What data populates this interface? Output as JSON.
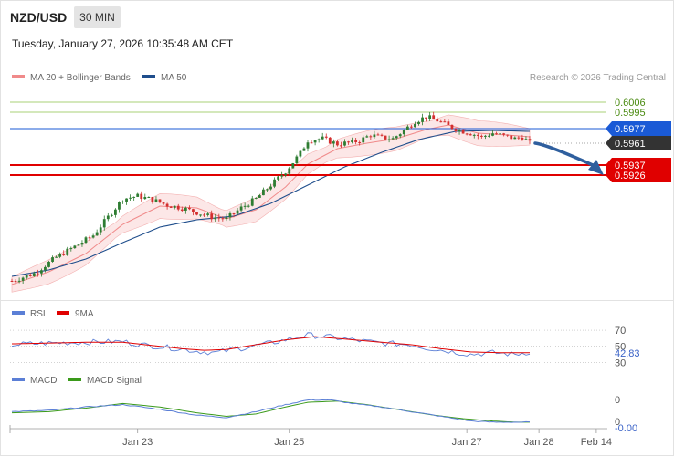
{
  "header": {
    "symbol": "NZD/USD",
    "timeframe": "30 MIN",
    "datetime": "Tuesday, January 27, 2026 10:35:48 AM CET",
    "copyright": "Research © 2026 Trading Central"
  },
  "legends": {
    "price": [
      {
        "label": "MA 20 + Bollinger Bands",
        "color": "#f08a8a"
      },
      {
        "label": "MA 50",
        "color": "#1f4e8c"
      }
    ],
    "rsi": [
      {
        "label": "RSI",
        "color": "#5b7fd6"
      },
      {
        "label": "9MA",
        "color": "#e00000"
      }
    ],
    "macd": [
      {
        "label": "MACD",
        "color": "#5b7fd6"
      },
      {
        "label": "MACD Signal",
        "color": "#3a9a1a"
      }
    ]
  },
  "colors": {
    "bull_candle": "#2e7d32",
    "bear_candle": "#d32f2f",
    "resistance": "#1a5ad6",
    "support": "#e00000",
    "green_levels": "#8bc34a",
    "last_price": "#333333",
    "arrow": "#2f5f9e"
  },
  "chart_data": [
    {
      "type": "candlestick",
      "name": "price",
      "ylim": [
        0.58,
        0.6018
      ],
      "levels": {
        "green": [
          0.6006,
          0.5995
        ],
        "resistance": 0.5977,
        "last": 0.5961,
        "support": [
          0.5937,
          0.5926
        ]
      },
      "level_labels": [
        "0.6006",
        "0.5995",
        "0.5977",
        "0.5961",
        "0.5937",
        "0.5926"
      ],
      "x_ticks": [
        "Jan 23",
        "Jan 25",
        "Jan 27",
        "Jan 28",
        "Feb 14"
      ],
      "anchors": [
        [
          0,
          0.581
        ],
        [
          6,
          0.5818
        ],
        [
          12,
          0.5836
        ],
        [
          18,
          0.585
        ],
        [
          22,
          0.586
        ],
        [
          26,
          0.588
        ],
        [
          30,
          0.59
        ],
        [
          34,
          0.5903
        ],
        [
          38,
          0.5899
        ],
        [
          42,
          0.5893
        ],
        [
          46,
          0.589
        ],
        [
          50,
          0.5885
        ],
        [
          54,
          0.588
        ],
        [
          58,
          0.5878
        ],
        [
          62,
          0.589
        ],
        [
          66,
          0.59
        ],
        [
          70,
          0.5915
        ],
        [
          74,
          0.593
        ],
        [
          78,
          0.595
        ],
        [
          80,
          0.5964
        ],
        [
          84,
          0.5966
        ],
        [
          88,
          0.596
        ],
        [
          92,
          0.5962
        ],
        [
          94,
          0.5964
        ],
        [
          97,
          0.597
        ],
        [
          100,
          0.5967
        ],
        [
          103,
          0.5966
        ],
        [
          106,
          0.5975
        ],
        [
          109,
          0.5985
        ],
        [
          112,
          0.599
        ],
        [
          115,
          0.5986
        ],
        [
          118,
          0.598
        ],
        [
          121,
          0.5975
        ],
        [
          124,
          0.5972
        ],
        [
          127,
          0.5968
        ],
        [
          130,
          0.5972
        ],
        [
          133,
          0.5969
        ],
        [
          136,
          0.5966
        ],
        [
          138,
          0.5968
        ],
        [
          140,
          0.5961
        ]
      ],
      "ma20_anchors": [
        [
          0,
          0.5806
        ],
        [
          10,
          0.582
        ],
        [
          20,
          0.584
        ],
        [
          30,
          0.5872
        ],
        [
          40,
          0.5892
        ],
        [
          50,
          0.589
        ],
        [
          58,
          0.5878
        ],
        [
          66,
          0.5888
        ],
        [
          74,
          0.5913
        ],
        [
          80,
          0.5938
        ],
        [
          88,
          0.5955
        ],
        [
          96,
          0.5961
        ],
        [
          104,
          0.5966
        ],
        [
          112,
          0.5976
        ],
        [
          118,
          0.5981
        ],
        [
          126,
          0.5972
        ],
        [
          134,
          0.597
        ],
        [
          140,
          0.5968
        ]
      ],
      "ma50_anchors": [
        [
          0,
          0.5815
        ],
        [
          10,
          0.5822
        ],
        [
          20,
          0.5834
        ],
        [
          30,
          0.5852
        ],
        [
          40,
          0.5869
        ],
        [
          50,
          0.5877
        ],
        [
          60,
          0.5881
        ],
        [
          70,
          0.5895
        ],
        [
          80,
          0.5915
        ],
        [
          90,
          0.5935
        ],
        [
          100,
          0.5951
        ],
        [
          110,
          0.5965
        ],
        [
          120,
          0.5974
        ],
        [
          130,
          0.5975
        ],
        [
          140,
          0.5974
        ]
      ],
      "band_halfwidth": 0.0011
    },
    {
      "type": "line",
      "name": "rsi",
      "ylim": [
        27,
        78
      ],
      "ticks": [
        "70",
        "50",
        "30"
      ],
      "last_label": "42.83",
      "series": [
        {
          "name": "RSI",
          "anchors": [
            [
              0,
              52
            ],
            [
              10,
              54
            ],
            [
              20,
              55
            ],
            [
              30,
              56
            ],
            [
              35,
              52
            ],
            [
              45,
              47
            ],
            [
              50,
              44
            ],
            [
              55,
              42
            ],
            [
              60,
              46
            ],
            [
              70,
              54
            ],
            [
              80,
              64
            ],
            [
              85,
              62
            ],
            [
              92,
              58
            ],
            [
              100,
              54
            ],
            [
              108,
              52
            ],
            [
              112,
              48
            ],
            [
              118,
              44
            ],
            [
              124,
              40
            ],
            [
              130,
              42
            ],
            [
              136,
              40
            ],
            [
              140,
              42.83
            ]
          ]
        },
        {
          "name": "9MA",
          "anchors": [
            [
              0,
              53
            ],
            [
              10,
              54
            ],
            [
              20,
              55
            ],
            [
              30,
              55
            ],
            [
              38,
              51
            ],
            [
              46,
              47
            ],
            [
              52,
              45
            ],
            [
              58,
              46
            ],
            [
              66,
              52
            ],
            [
              74,
              58
            ],
            [
              82,
              62
            ],
            [
              90,
              59
            ],
            [
              100,
              55
            ],
            [
              108,
              52
            ],
            [
              116,
              47
            ],
            [
              124,
              43
            ],
            [
              132,
              42
            ],
            [
              140,
              42
            ]
          ]
        }
      ]
    },
    {
      "type": "line",
      "name": "macd",
      "ylim": [
        -0.0016,
        0.0016
      ],
      "ticks": [
        "0",
        "0"
      ],
      "last_label": "-0.00",
      "series": [
        {
          "name": "MACD",
          "anchors": [
            [
              0,
              -0.0003
            ],
            [
              10,
              -0.0002
            ],
            [
              20,
              0.0001
            ],
            [
              30,
              0.0003
            ],
            [
              40,
              -0.0001
            ],
            [
              50,
              -0.0006
            ],
            [
              58,
              -0.0008
            ],
            [
              66,
              -0.0003
            ],
            [
              74,
              0.0003
            ],
            [
              80,
              0.0007
            ],
            [
              86,
              0.0007
            ],
            [
              92,
              0.0004
            ],
            [
              100,
              0.0001
            ],
            [
              110,
              -0.0004
            ],
            [
              118,
              -0.0008
            ],
            [
              124,
              -0.0011
            ],
            [
              130,
              -0.0012
            ],
            [
              136,
              -0.0012
            ],
            [
              140,
              -0.0012
            ]
          ]
        },
        {
          "name": "MACD Signal",
          "anchors": [
            [
              0,
              -0.0004
            ],
            [
              10,
              -0.0003
            ],
            [
              20,
              0.0
            ],
            [
              30,
              0.0004
            ],
            [
              40,
              0.0001
            ],
            [
              50,
              -0.0004
            ],
            [
              58,
              -0.0007
            ],
            [
              66,
              -0.0005
            ],
            [
              74,
              0.0001
            ],
            [
              80,
              0.0005
            ],
            [
              88,
              0.0006
            ],
            [
              96,
              0.0003
            ],
            [
              106,
              -0.0002
            ],
            [
              114,
              -0.0006
            ],
            [
              122,
              -0.0009
            ],
            [
              130,
              -0.0011
            ],
            [
              136,
              -0.0012
            ],
            [
              140,
              -0.0012
            ]
          ]
        }
      ]
    }
  ]
}
